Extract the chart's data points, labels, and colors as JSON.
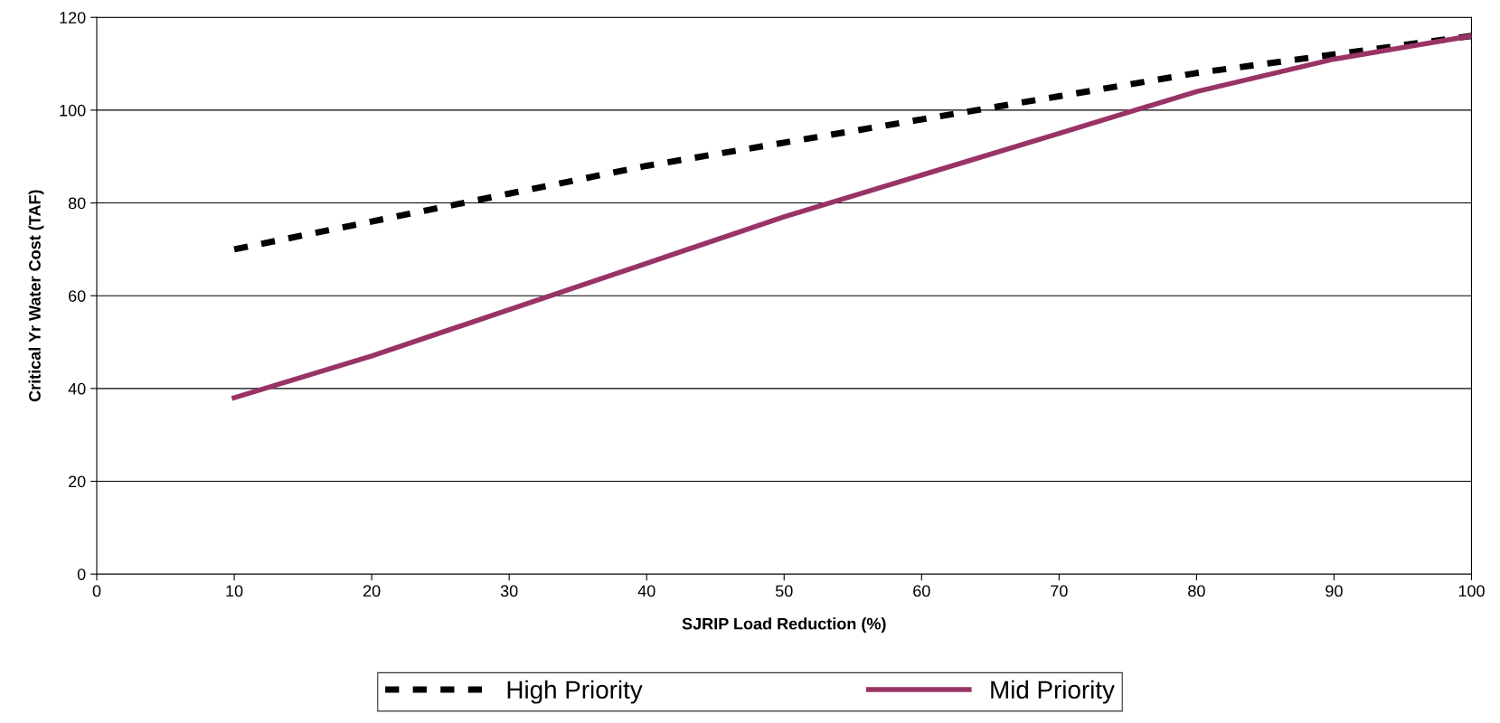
{
  "chart_data": {
    "type": "line",
    "xlabel": "SJRIP Load Reduction (%)",
    "ylabel": "Critical Yr Water Cost (TAF)",
    "x": [
      10,
      20,
      30,
      40,
      50,
      60,
      70,
      80,
      90,
      100
    ],
    "series": [
      {
        "name": "High Priority",
        "color": "#000000",
        "line_style": "dashed",
        "values": [
          70,
          76,
          82,
          88,
          93,
          98,
          103,
          108,
          112,
          116
        ]
      },
      {
        "name": "Mid Priority",
        "color": "#993366",
        "line_style": "solid",
        "values": [
          38,
          47,
          57,
          67,
          77,
          86,
          95,
          104,
          111,
          116
        ]
      }
    ],
    "xlim": [
      0,
      100
    ],
    "xticks": [
      0,
      10,
      20,
      30,
      40,
      50,
      60,
      70,
      80,
      90,
      100
    ],
    "ylim": [
      0,
      120
    ],
    "yticks": [
      0,
      20,
      40,
      60,
      80,
      100,
      120
    ],
    "grid": "y",
    "legend": "bottom",
    "marker": "none"
  }
}
